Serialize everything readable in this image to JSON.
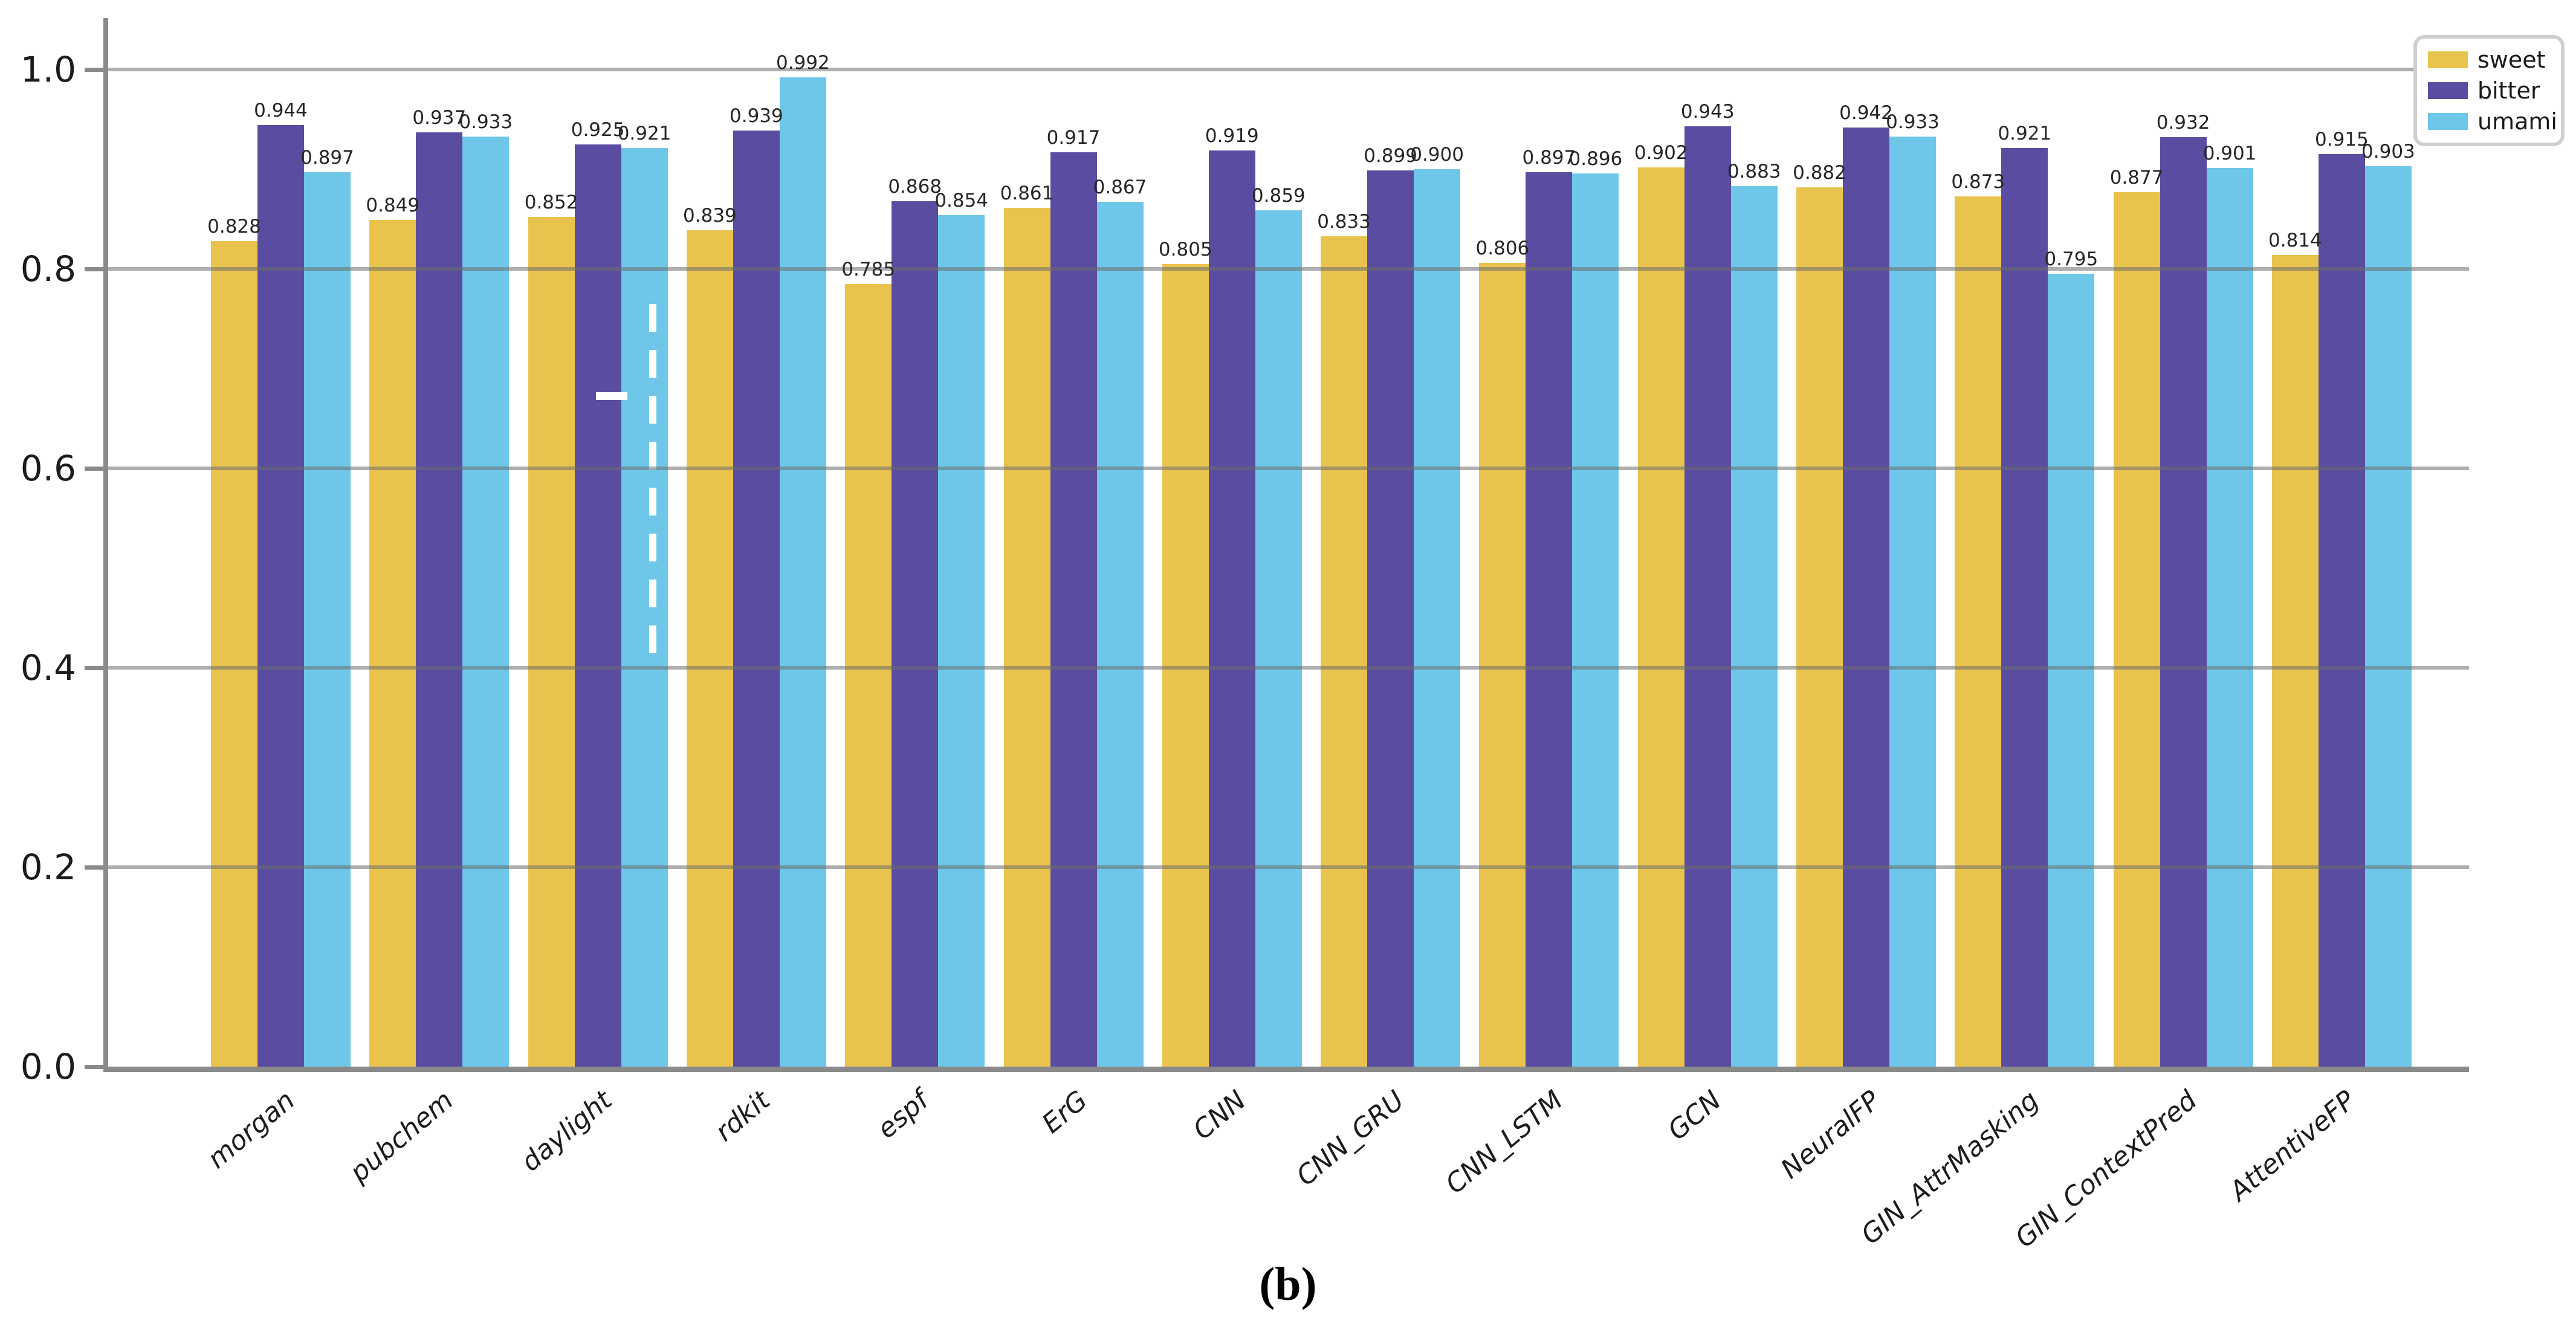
{
  "chart_data": {
    "type": "bar",
    "title": "",
    "xlabel": "",
    "ylabel": "",
    "categories": [
      "morgan",
      "pubchem",
      "daylight",
      "rdkit",
      "espf",
      "ErG",
      "CNN",
      "CNN_GRU",
      "CNN_LSTM",
      "GCN",
      "NeuralFP",
      "GIN_AttrMasking",
      "GIN_ContextPred",
      "AttentiveFP"
    ],
    "series": [
      {
        "name": "sweet",
        "color": "#E8C44E",
        "values": [
          0.828,
          0.849,
          0.852,
          0.839,
          0.785,
          0.861,
          0.805,
          0.833,
          0.806,
          0.902,
          0.882,
          0.873,
          0.877,
          0.814
        ]
      },
      {
        "name": "bitter",
        "color": "#5A4CA0",
        "values": [
          0.944,
          0.937,
          0.925,
          0.939,
          0.868,
          0.917,
          0.919,
          0.899,
          0.897,
          0.943,
          0.942,
          0.921,
          0.932,
          0.915
        ]
      },
      {
        "name": "umami",
        "color": "#6EC7E8",
        "values": [
          0.897,
          0.933,
          0.921,
          0.992,
          0.854,
          0.867,
          0.859,
          0.9,
          0.896,
          0.883,
          0.933,
          0.795,
          0.901,
          0.903
        ]
      }
    ],
    "yticks": [
      "0.0",
      "0.2",
      "0.4",
      "0.6",
      "0.8",
      "1.0"
    ],
    "ylim": [
      0.0,
      1.05
    ],
    "grid": true,
    "grid_color": "#b0b0b0",
    "axis_color": "#8a8a8a",
    "bar_labels": true,
    "bar_label_decimals": 3,
    "legend_position": "upper-right",
    "xtick_rotation_deg": -40,
    "xtick_style": "italic"
  },
  "caption": {
    "text": "(b)"
  }
}
